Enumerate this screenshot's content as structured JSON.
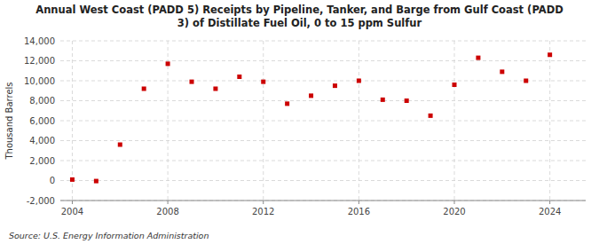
{
  "chart_data": {
    "type": "scatter",
    "title": "Annual West Coast (PADD 5) Receipts by Pipeline, Tanker, and Barge from Gulf Coast (PADD\n3) of Distillate Fuel Oil, 0 to 15 ppm Sulfur",
    "ylabel": "Thousand Barrels",
    "source": "Source: U.S. Energy Information Administration",
    "x": [
      2004,
      2005,
      2006,
      2007,
      2008,
      2009,
      2010,
      2011,
      2012,
      2013,
      2014,
      2015,
      2016,
      2017,
      2018,
      2019,
      2020,
      2021,
      2022,
      2023,
      2024
    ],
    "values": [
      100,
      -50,
      3600,
      9200,
      11700,
      9900,
      9200,
      10400,
      9900,
      7700,
      8500,
      9500,
      10000,
      8100,
      8000,
      6500,
      9600,
      12300,
      10900,
      10000,
      12600
    ],
    "color": "#cc0000",
    "marker": "square",
    "xlim": [
      2003.5,
      2025.5
    ],
    "xticks": [
      2004,
      2008,
      2012,
      2016,
      2020,
      2024
    ],
    "ylim": [
      -2000,
      14000
    ],
    "yticks": [
      {
        "value": -2000,
        "label": "-2,000"
      },
      0,
      {
        "value": 2000,
        "label": "2,000"
      },
      {
        "value": 4000,
        "label": "4,000"
      },
      {
        "value": 6000,
        "label": "6,000"
      },
      {
        "value": 8000,
        "label": "8,000"
      },
      {
        "value": 10000,
        "label": "10,000"
      },
      {
        "value": 12000,
        "label": "12,000"
      },
      {
        "value": 14000,
        "label": "14,000"
      }
    ],
    "grid": true
  }
}
